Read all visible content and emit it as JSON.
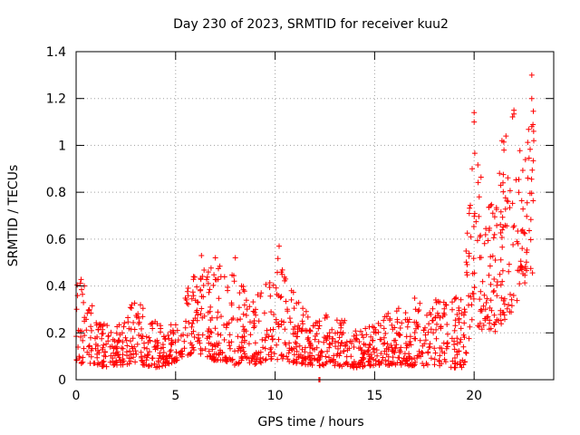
{
  "chart_data": {
    "type": "scatter",
    "title": "Day 230 of 2023, SRMTID for receiver kuu2",
    "xlabel": "GPS time / hours",
    "ylabel": "SRMTID / TECUs",
    "xlim": [
      0,
      24
    ],
    "ylim": [
      0,
      1.4
    ],
    "xticks": [
      0,
      5,
      10,
      15,
      20
    ],
    "xtick_labels": [
      "0",
      "5",
      "10",
      "15",
      "20"
    ],
    "yticks": [
      0,
      0.2,
      0.4,
      0.6,
      0.8,
      1,
      1.2,
      1.4
    ],
    "ytick_labels": [
      "0",
      "0.2",
      "0.4",
      "0.6",
      "0.8",
      "1",
      "1.2",
      "1.4"
    ],
    "grid": true,
    "marker": "+",
    "series_color": "#ff0000",
    "profile": {
      "description": "Approximate envelope of the scattered SRMTID samples read from the figure (hour, typical min, typical max)",
      "points": [
        [
          0.0,
          0.08,
          0.45
        ],
        [
          0.5,
          0.06,
          0.42
        ],
        [
          1.0,
          0.05,
          0.25
        ],
        [
          2.0,
          0.06,
          0.22
        ],
        [
          3.0,
          0.07,
          0.35
        ],
        [
          4.0,
          0.05,
          0.25
        ],
        [
          4.5,
          0.06,
          0.22
        ],
        [
          5.0,
          0.08,
          0.28
        ],
        [
          5.5,
          0.1,
          0.4
        ],
        [
          6.0,
          0.12,
          0.48
        ],
        [
          7.0,
          0.08,
          0.52
        ],
        [
          7.5,
          0.08,
          0.45
        ],
        [
          8.0,
          0.06,
          0.52
        ],
        [
          8.5,
          0.08,
          0.38
        ],
        [
          9.0,
          0.06,
          0.35
        ],
        [
          9.5,
          0.08,
          0.48
        ],
        [
          10.0,
          0.06,
          0.42
        ],
        [
          10.2,
          0.1,
          0.57
        ],
        [
          10.5,
          0.08,
          0.52
        ],
        [
          11.0,
          0.07,
          0.35
        ],
        [
          12.0,
          0.06,
          0.25
        ],
        [
          13.0,
          0.06,
          0.3
        ],
        [
          14.0,
          0.05,
          0.22
        ],
        [
          15.0,
          0.06,
          0.25
        ],
        [
          16.0,
          0.06,
          0.3
        ],
        [
          17.0,
          0.06,
          0.35
        ],
        [
          18.0,
          0.06,
          0.35
        ],
        [
          19.0,
          0.05,
          0.35
        ],
        [
          19.5,
          0.05,
          0.4
        ],
        [
          19.8,
          0.2,
          0.9
        ],
        [
          20.0,
          0.25,
          1.14
        ],
        [
          20.5,
          0.2,
          0.8
        ],
        [
          21.0,
          0.2,
          0.75
        ],
        [
          21.5,
          0.25,
          1.05
        ],
        [
          22.0,
          0.3,
          1.15
        ],
        [
          22.5,
          0.4,
          0.9
        ],
        [
          23.0,
          0.45,
          1.3
        ]
      ]
    },
    "notable_points": [
      {
        "x": 10.2,
        "y": 0.57
      },
      {
        "x": 20.0,
        "y": 1.14
      },
      {
        "x": 20.0,
        "y": 1.1
      },
      {
        "x": 19.9,
        "y": 0.9
      },
      {
        "x": 21.4,
        "y": 1.02
      },
      {
        "x": 21.5,
        "y": 0.98
      },
      {
        "x": 21.6,
        "y": 1.04
      },
      {
        "x": 22.0,
        "y": 1.15
      },
      {
        "x": 22.9,
        "y": 1.3
      },
      {
        "x": 22.9,
        "y": 1.2
      },
      {
        "x": 23.0,
        "y": 1.02
      },
      {
        "x": 22.9,
        "y": 1.08
      },
      {
        "x": 7.0,
        "y": 0.52
      },
      {
        "x": 8.0,
        "y": 0.52
      },
      {
        "x": 6.3,
        "y": 0.53
      },
      {
        "x": 12.2,
        "y": 0.0
      },
      {
        "x": 12.25,
        "y": 0.0
      }
    ],
    "point_count": 1400,
    "seed": 230
  }
}
